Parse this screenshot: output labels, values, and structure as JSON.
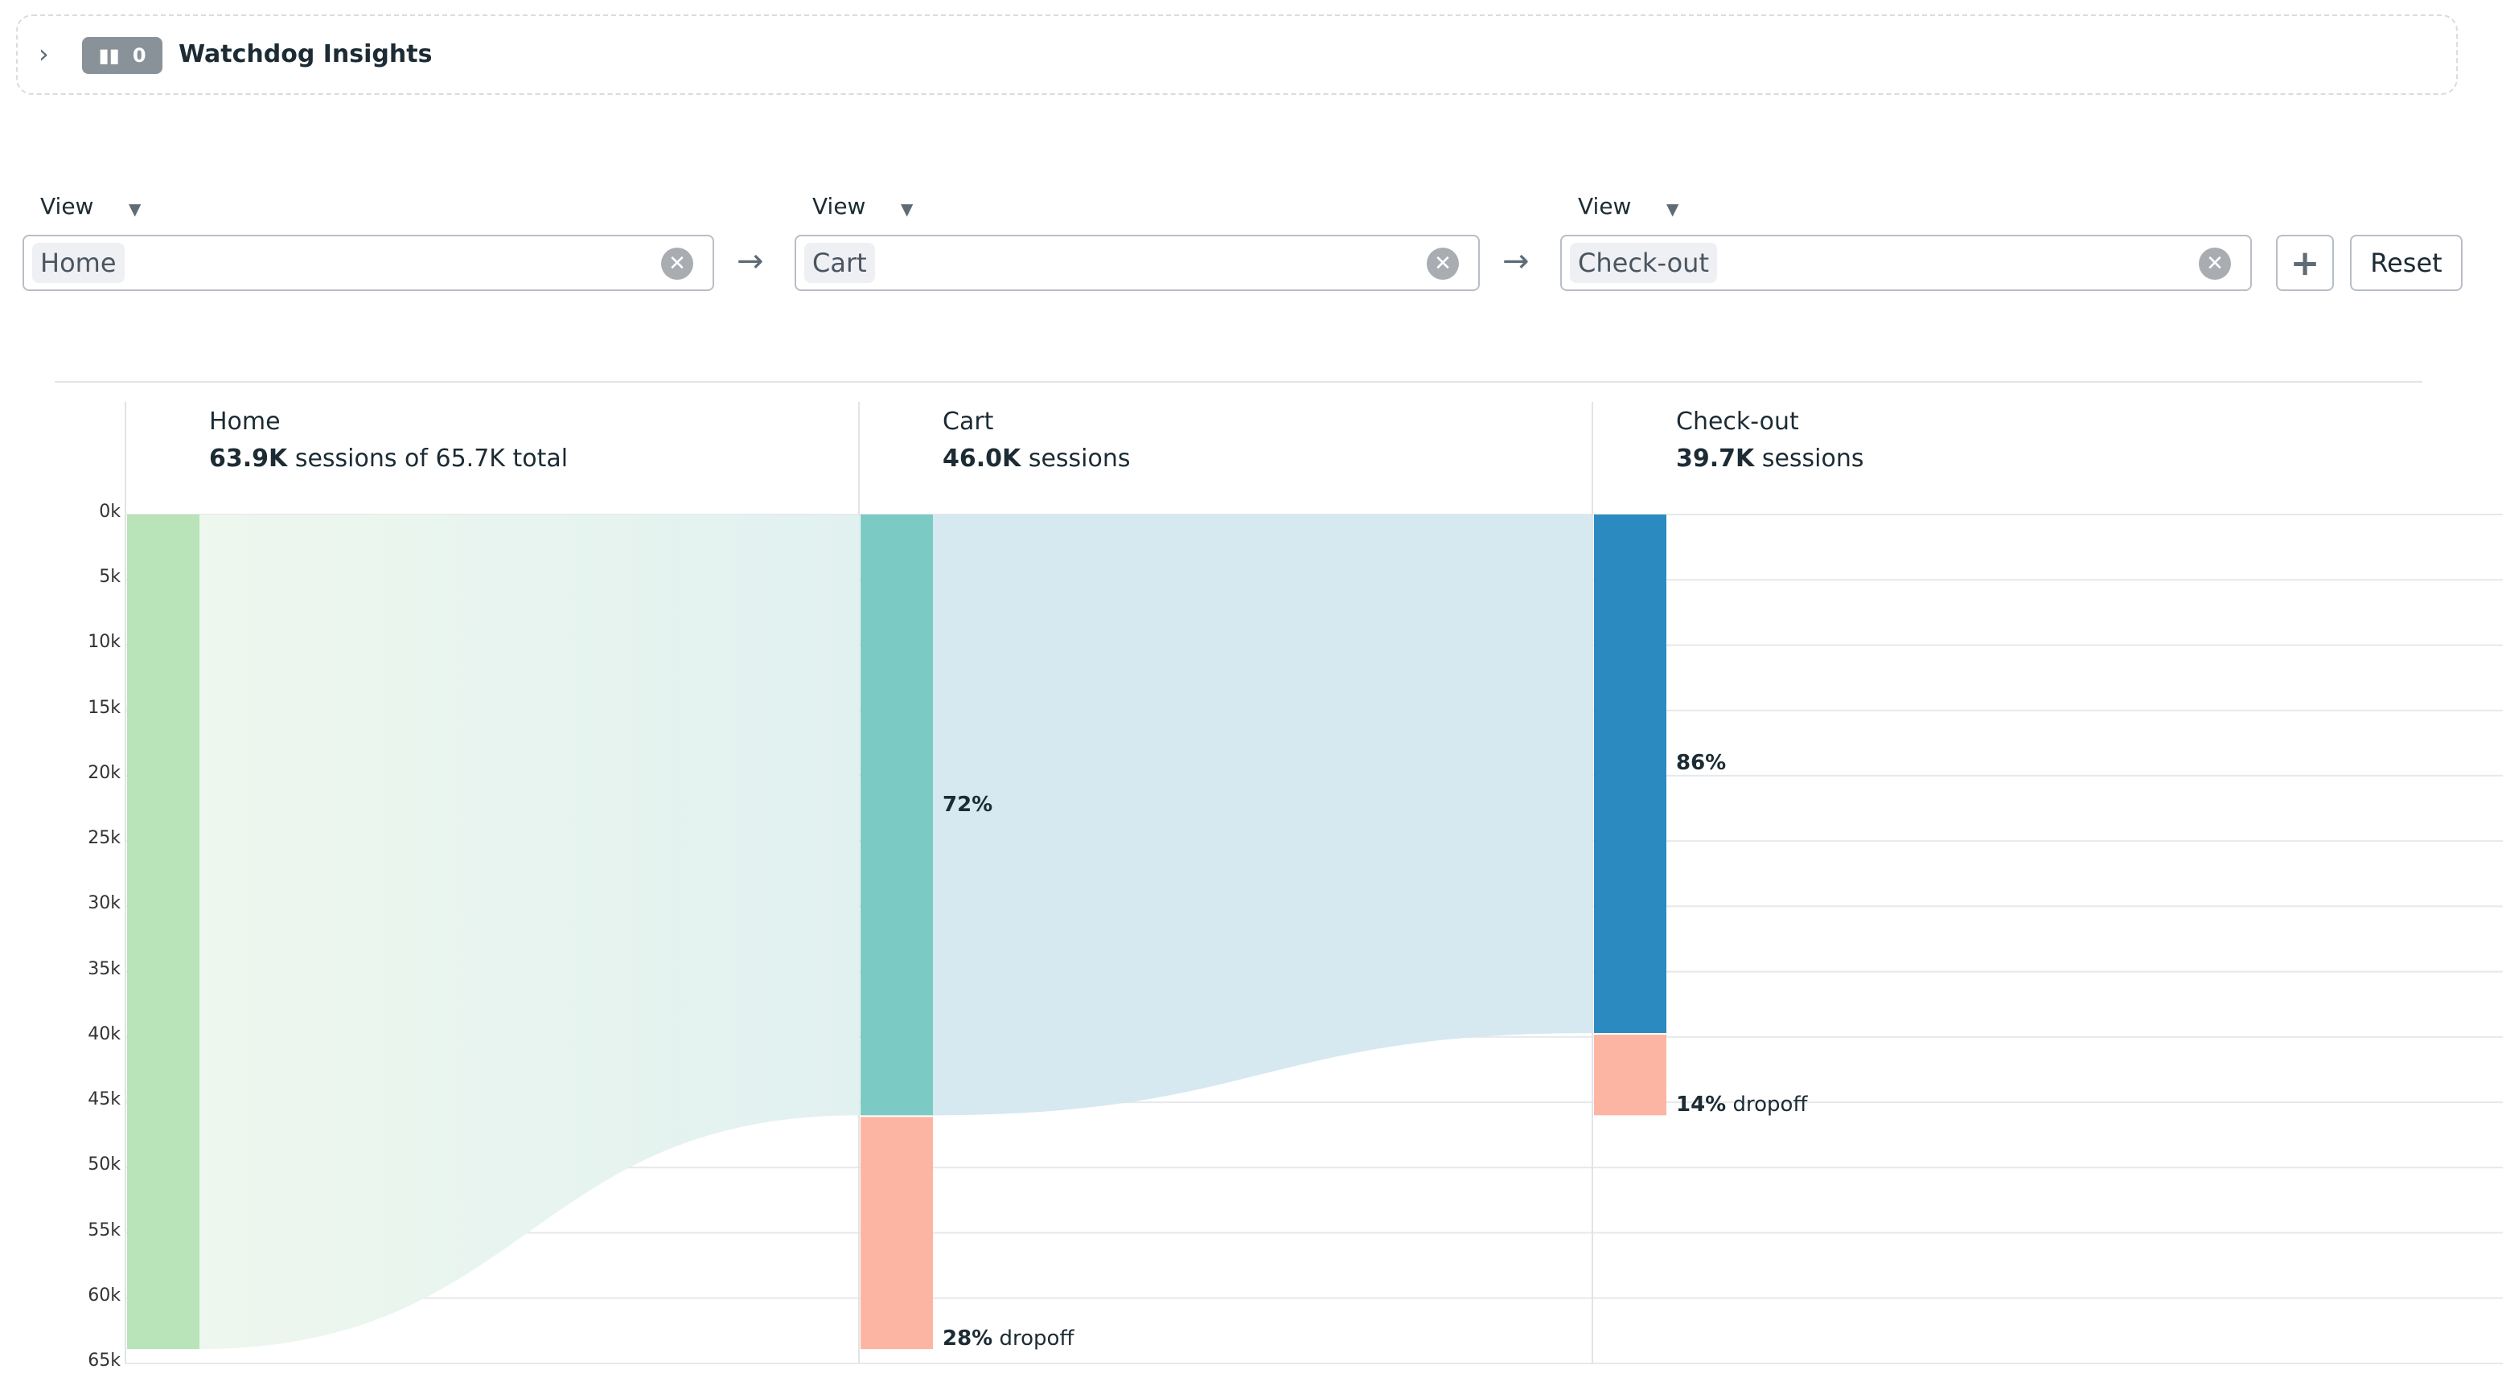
{
  "watchdog": {
    "badge_count": "0",
    "title": "Watchdog Insights"
  },
  "steps": [
    {
      "type": "View",
      "value": "Home"
    },
    {
      "type": "View",
      "value": "Cart"
    },
    {
      "type": "View",
      "value": "Check-out"
    }
  ],
  "buttons": {
    "add": "+",
    "reset": "Reset"
  },
  "colors": {
    "home": "#b9e3b8",
    "cart": "#7bcbc4",
    "checkout": "#2b8bc0",
    "dropoff": "#fdb5a3"
  },
  "chart_data": {
    "type": "funnel",
    "ylim": [
      0,
      65
    ],
    "y_unit": "k",
    "y_ticks": [
      "0k",
      "5k",
      "10k",
      "15k",
      "20k",
      "25k",
      "30k",
      "35k",
      "40k",
      "45k",
      "50k",
      "55k",
      "60k",
      "65k"
    ],
    "steps": [
      {
        "name": "Home",
        "sessions": 63.9,
        "sessions_label": "63.9K",
        "suffix": "sessions of 65.7K total"
      },
      {
        "name": "Cart",
        "sessions": 46.0,
        "sessions_label": "46.0K",
        "suffix": "sessions",
        "conversion": "72%",
        "dropoff": "28%",
        "dropoff_label": "dropoff"
      },
      {
        "name": "Check-out",
        "sessions": 39.7,
        "sessions_label": "39.7K",
        "suffix": "sessions",
        "conversion": "86%",
        "dropoff": "14%",
        "dropoff_label": "dropoff"
      }
    ]
  }
}
